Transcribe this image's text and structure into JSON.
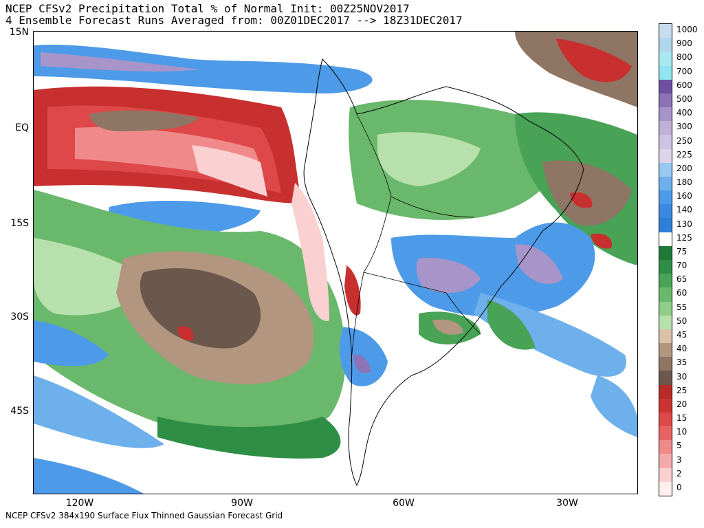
{
  "header": {
    "title_line1": "NCEP CFSv2 Precipitation Total % of Normal Init: 00Z25NOV2017",
    "title_line2": "4 Ensemble Forecast Runs Averaged from: 00Z01DEC2017 --> 18Z31DEC2017"
  },
  "footer": {
    "text": "NCEP CFSv2 384x190 Surface Flux Thinned Gaussian Forecast Grid"
  },
  "axes": {
    "lat_labels": [
      "15N",
      "EQ",
      "15S",
      "30S",
      "45S"
    ],
    "lon_labels": [
      "120W",
      "90W",
      "60W",
      "30W"
    ]
  },
  "legend": {
    "labels": [
      "1000",
      "900",
      "800",
      "700",
      "600",
      "500",
      "400",
      "300",
      "250",
      "225",
      "200",
      "180",
      "160",
      "140",
      "130",
      "125",
      "75",
      "70",
      "65",
      "60",
      "55",
      "50",
      "45",
      "40",
      "35",
      "30",
      "25",
      "20",
      "15",
      "10",
      "5",
      "3",
      "2",
      "0"
    ],
    "colors": [
      "#c8dced",
      "#b0d6ec",
      "#a8e8ee",
      "#8fe6ee",
      "#6e50a0",
      "#8c72b6",
      "#a794c8",
      "#bfb0d8",
      "#cfc3e2",
      "#ddd4ea",
      "#96c8f0",
      "#6eb0ec",
      "#4d9be8",
      "#3a88df",
      "#2f7ed9",
      "#ffffff",
      "#1f7a3a",
      "#2f8e45",
      "#48a356",
      "#6ab86b",
      "#8fcd88",
      "#b8e0ad",
      "#d9c2aa",
      "#b29680",
      "#8f7563",
      "#6b574b",
      "#b82b26",
      "#cc3432",
      "#de4848",
      "#e86464",
      "#f08a8a",
      "#f5aaaa",
      "#fad0d0",
      "#fff0f0"
    ]
  },
  "colors": {
    "coast": "#000000",
    "wet_blue": "#3a88df",
    "dry_red": "#c83030",
    "green": "#48a356",
    "brown": "#8f7563"
  }
}
